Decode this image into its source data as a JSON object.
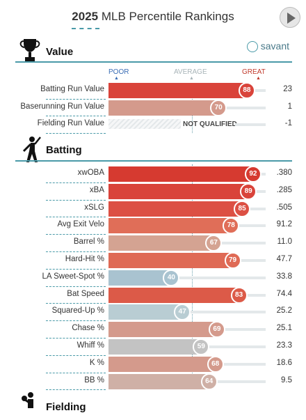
{
  "header": {
    "year": "2025",
    "title": "MLB Percentile Rankings"
  },
  "brand": {
    "name": "savant"
  },
  "scale": {
    "poor": "POOR",
    "average": "AVERAGE",
    "great": "GREAT"
  },
  "colors": {
    "poor": "#3a6db5",
    "great": "#c0392b",
    "accent": "#4a9aa8"
  },
  "value_section": {
    "label": "Value",
    "icon": "trophy-icon",
    "rows": [
      {
        "label": "Batting Run Value",
        "percentile": 88,
        "value": "23",
        "color": "#d9433a"
      },
      {
        "label": "Baserunning Run Value",
        "percentile": 70,
        "value": "1",
        "color": "#d49a8c"
      },
      {
        "label": "Fielding Run Value",
        "percentile": null,
        "value": "-1",
        "status": "NOT QUALIFIED"
      }
    ]
  },
  "batting_section": {
    "label": "Batting",
    "icon": "batter-icon",
    "rows": [
      {
        "label": "xwOBA",
        "percentile": 92,
        "value": ".380",
        "color": "#d63a30"
      },
      {
        "label": "xBA",
        "percentile": 89,
        "value": ".285",
        "color": "#d9433a"
      },
      {
        "label": "xSLG",
        "percentile": 85,
        "value": ".505",
        "color": "#dc5044"
      },
      {
        "label": "Avg Exit Velo",
        "percentile": 78,
        "value": "91.2",
        "color": "#e06e58"
      },
      {
        "label": "Barrel %",
        "percentile": 67,
        "value": "11.0",
        "color": "#d4a392"
      },
      {
        "label": "Hard-Hit %",
        "percentile": 79,
        "value": "47.7",
        "color": "#df6a55"
      },
      {
        "label": "LA Sweet-Spot %",
        "percentile": 40,
        "value": "33.8",
        "color": "#a9c3d0"
      },
      {
        "label": "Bat Speed",
        "percentile": 83,
        "value": "74.4",
        "color": "#dc5a48"
      },
      {
        "label": "Squared-Up %",
        "percentile": 47,
        "value": "25.2",
        "color": "#b9cdd3"
      },
      {
        "label": "Chase %",
        "percentile": 69,
        "value": "25.1",
        "color": "#d49a8c"
      },
      {
        "label": "Whiff %",
        "percentile": 59,
        "value": "23.3",
        "color": "#c3c3c3"
      },
      {
        "label": "K %",
        "percentile": 68,
        "value": "18.6",
        "color": "#d49a8c"
      },
      {
        "label": "BB %",
        "percentile": 64,
        "value": "9.5",
        "color": "#cfb0a6"
      }
    ]
  },
  "fielding_section": {
    "label": "Fielding",
    "icon": "fielder-icon"
  }
}
